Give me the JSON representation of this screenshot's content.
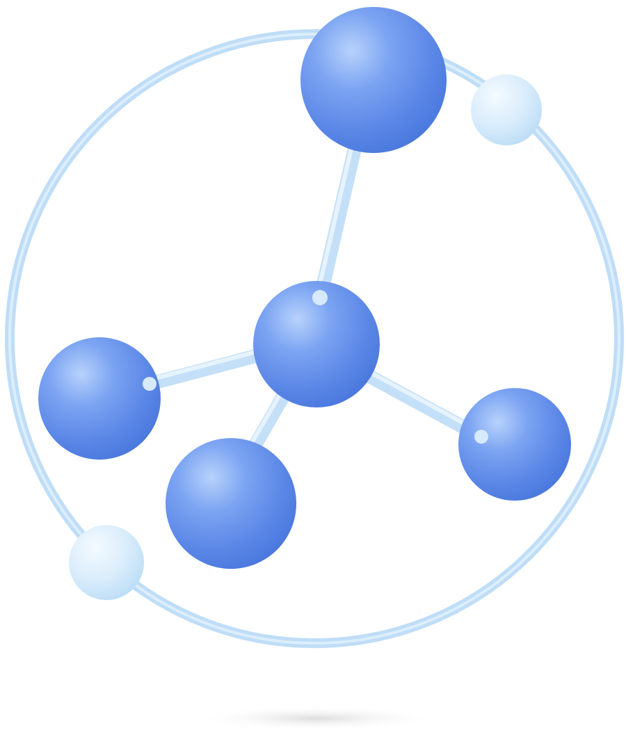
{
  "illustration": {
    "subject": "molecule-in-orbit-icon",
    "colors": {
      "atom_blue": "#5B8CEB",
      "atom_highlight": "#A9C9FA",
      "atom_shadow": "#3F6FD8",
      "orbit_ring": "#B9D9F7",
      "satellite": "#DCEEFB",
      "bond": "#C7E1F8",
      "background": "#FFFFFF",
      "ground_shadow": "#E8E8E8"
    }
  }
}
